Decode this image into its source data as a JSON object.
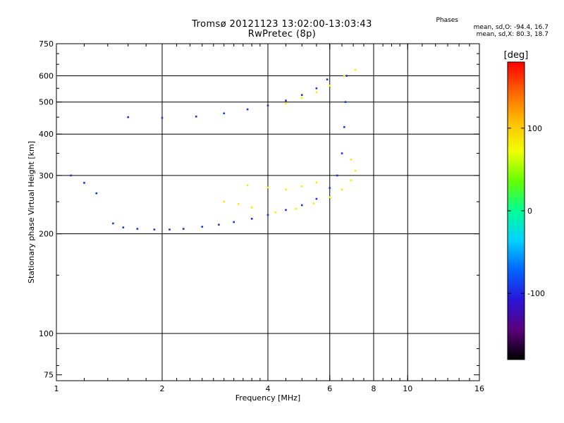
{
  "chart_data": {
    "type": "scatter",
    "title": "Tromsø 20121123 13:02:00-13:03:43",
    "subtitle": "RwPretec (8p)",
    "xlabel": "Frequency [MHz]",
    "ylabel": "Stationary phase Virtual Height [km]",
    "x_scale": "log",
    "y_scale": "log",
    "xlim": [
      1,
      16
    ],
    "ylim": [
      72,
      750
    ],
    "x_ticks": [
      1,
      2,
      4,
      6,
      8,
      10,
      16
    ],
    "x_tick_labels": [
      "1",
      "2",
      "4",
      "6",
      "8",
      "10",
      "16"
    ],
    "y_ticks": [
      75,
      100,
      200,
      300,
      400,
      500,
      600,
      750
    ],
    "y_tick_labels": [
      "75",
      "100",
      "200",
      "300",
      "400",
      "500",
      "600",
      "750"
    ],
    "x_gridlines": [
      2,
      4,
      6,
      8,
      10
    ],
    "y_gridlines": [
      100,
      200,
      300,
      400,
      500,
      600
    ],
    "grid": true,
    "colorbar": {
      "label": "[deg]",
      "range": [
        -180,
        180
      ],
      "tick_values": [
        -100,
        0,
        100
      ],
      "tick_labels": [
        "-100",
        "0",
        "100"
      ],
      "colors": [
        "#000000",
        "#5a007a",
        "#2a14d8",
        "#0064ff",
        "#00d2ff",
        "#00ff96",
        "#64ff00",
        "#f0ff00",
        "#ffbe00",
        "#ff6400",
        "#ff0000"
      ]
    },
    "legend": {
      "title": "Phases",
      "placement": "top-right",
      "lines": [
        "mean, sd,O: -94.4, 16.7",
        "mean, sd,X: 80.3, 18.7"
      ]
    },
    "series": [
      {
        "name": "O",
        "phase_mean": -94.4,
        "phase_sd": 16.7,
        "points": [
          [
            1.45,
            215
          ],
          [
            1.55,
            209
          ],
          [
            1.7,
            207
          ],
          [
            1.9,
            206
          ],
          [
            2.1,
            206
          ],
          [
            2.3,
            207
          ],
          [
            2.6,
            210
          ],
          [
            2.9,
            213
          ],
          [
            3.2,
            217
          ],
          [
            3.6,
            222
          ],
          [
            4.0,
            228
          ],
          [
            4.5,
            236
          ],
          [
            5.0,
            244
          ],
          [
            5.5,
            255
          ],
          [
            6.0,
            275
          ],
          [
            6.3,
            300
          ],
          [
            6.5,
            350
          ],
          [
            6.6,
            420
          ],
          [
            6.65,
            500
          ],
          [
            6.7,
            600
          ],
          [
            1.3,
            265
          ],
          [
            1.2,
            285
          ],
          [
            1.1,
            300
          ],
          [
            1.6,
            450
          ],
          [
            2.0,
            448
          ],
          [
            2.5,
            452
          ],
          [
            3.0,
            462
          ],
          [
            3.5,
            475
          ],
          [
            4.0,
            488
          ],
          [
            4.5,
            505
          ],
          [
            5.0,
            525
          ],
          [
            5.5,
            550
          ],
          [
            5.9,
            585
          ]
        ]
      },
      {
        "name": "X",
        "phase_mean": 80.3,
        "phase_sd": 18.7,
        "points": [
          [
            3.0,
            250
          ],
          [
            3.3,
            246
          ],
          [
            3.6,
            240
          ],
          [
            4.2,
            232
          ],
          [
            4.8,
            238
          ],
          [
            5.4,
            247
          ],
          [
            6.0,
            258
          ],
          [
            6.5,
            272
          ],
          [
            6.9,
            290
          ],
          [
            7.1,
            310
          ],
          [
            3.5,
            280
          ],
          [
            4.0,
            276
          ],
          [
            4.5,
            272
          ],
          [
            5.0,
            278
          ],
          [
            5.5,
            286
          ],
          [
            4.5,
            495
          ],
          [
            5.0,
            515
          ],
          [
            5.5,
            535
          ],
          [
            6.0,
            560
          ],
          [
            6.6,
            600
          ],
          [
            7.1,
            625
          ],
          [
            6.9,
            335
          ]
        ]
      }
    ]
  }
}
